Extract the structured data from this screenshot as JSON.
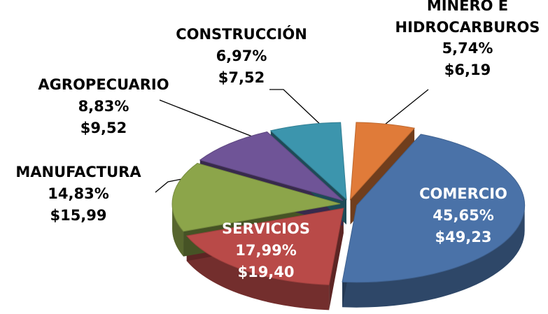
{
  "chart_data": {
    "type": "pie3d",
    "categories": [
      "MINERO E HIDROCARBUROS",
      "COMERCIO",
      "SERVICIOS",
      "MANUFACTURA",
      "AGROPECUARIO",
      "CONSTRUCCIÓN"
    ],
    "values": [
      5.74,
      45.65,
      17.99,
      14.83,
      8.83,
      6.97
    ],
    "value_labels": [
      "5,74%",
      "45,65%",
      "17,99%",
      "14,83%",
      "8,83%",
      "6,97%"
    ],
    "amount_labels": [
      "$6,19",
      "$49,23",
      "$19,40",
      "$15,99",
      "$9,52",
      "$7,52"
    ],
    "colors": [
      "#e07b39",
      "#4a72a8",
      "#b94a48",
      "#8ca54a",
      "#6f5497",
      "#3c95ad"
    ]
  }
}
